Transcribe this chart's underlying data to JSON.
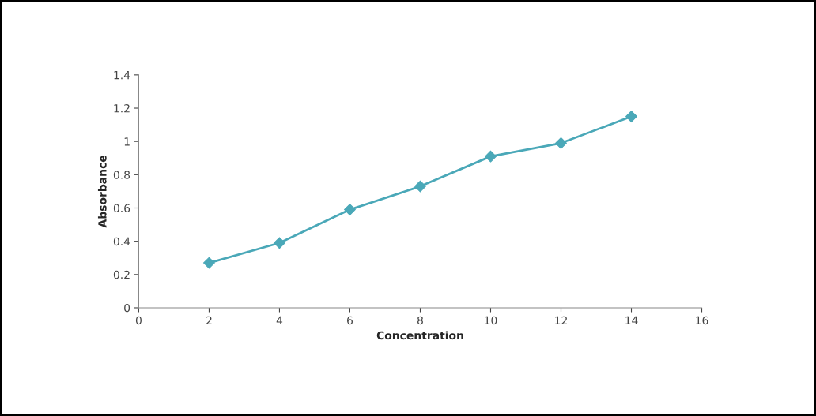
{
  "chart_data": {
    "type": "line",
    "xlabel": "Concentration",
    "ylabel": "Absorbance",
    "x": [
      2,
      4,
      6,
      8,
      10,
      12,
      14
    ],
    "series": [
      {
        "color": "#4aa8b8",
        "values": [
          0.27,
          0.39,
          0.59,
          0.73,
          0.91,
          0.99,
          1.15
        ]
      }
    ],
    "xlim": [
      0,
      16
    ],
    "xticks": [
      0,
      2,
      4,
      6,
      8,
      10,
      12,
      14,
      16
    ],
    "ylim": [
      0,
      1.4
    ],
    "yticks": [
      0,
      0.2,
      0.4,
      0.6,
      0.8,
      1,
      1.2,
      1.4
    ],
    "grid": false,
    "marker": "diamond",
    "line_style": "solid"
  }
}
